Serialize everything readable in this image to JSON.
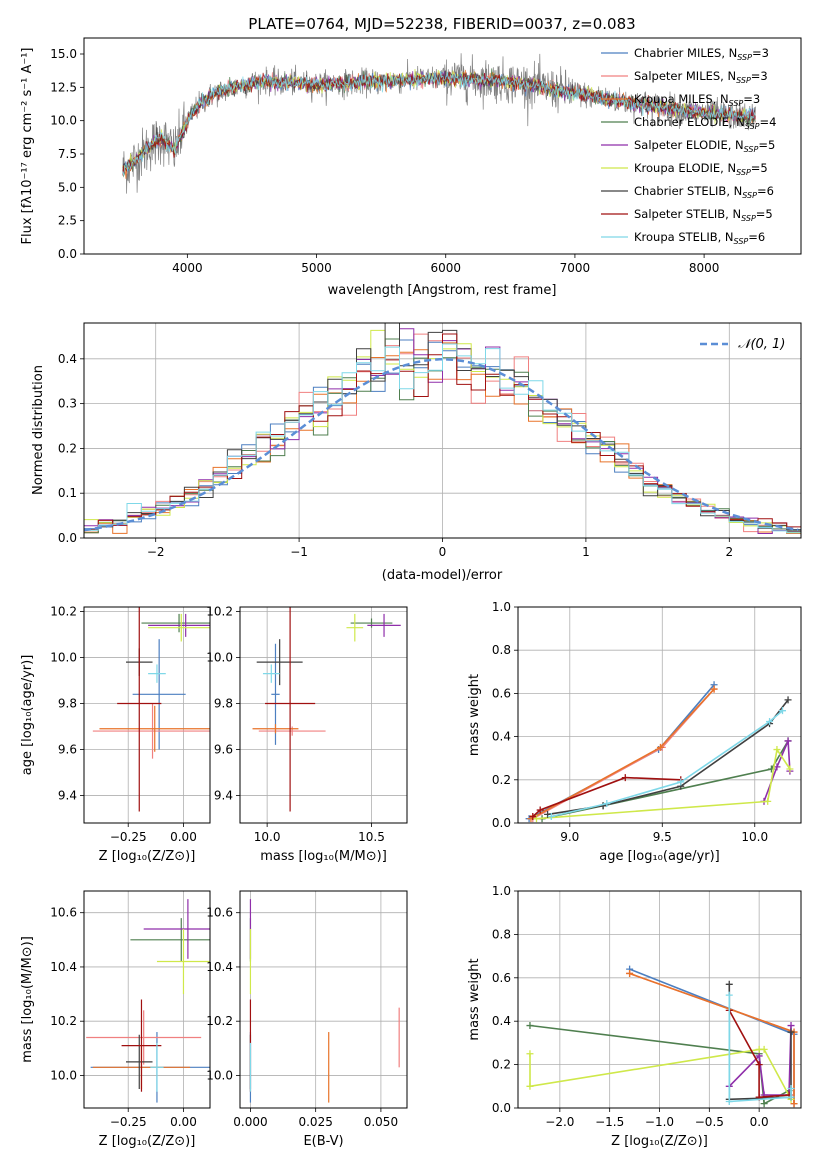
{
  "chart_data": [
    {
      "id": "spectrum",
      "type": "line",
      "title": "PLATE=0764, MJD=52238, FIBERID=0037, z=0.083",
      "xlabel": "wavelength [Angstrom, rest frame]",
      "ylabel": "Flux [fλ10⁻¹⁷ erg cm⁻² s⁻¹ A⁻¹]",
      "xlim": [
        3200,
        8750
      ],
      "ylim": [
        0,
        16.2
      ],
      "xticks": [
        4000,
        5000,
        6000,
        7000,
        8000
      ],
      "yticks": [
        0.0,
        2.5,
        5.0,
        7.5,
        10.0,
        12.5,
        15.0
      ],
      "grid": false,
      "legend_position": "right",
      "data_color": "#7f7f7f",
      "continuum": {
        "x": [
          3500,
          3600,
          3700,
          3800,
          3900,
          4000,
          4100,
          4200,
          4300,
          4400,
          4500,
          4600,
          4700,
          4800,
          4900,
          5000,
          5200,
          5400,
          5600,
          5800,
          6000,
          6200,
          6400,
          6600,
          6800,
          7000,
          7200,
          7400,
          7600,
          7800,
          8000,
          8200,
          8400
        ],
        "y": [
          6.3,
          7.0,
          8.0,
          8.7,
          7.7,
          10.0,
          11.3,
          12.0,
          12.3,
          12.6,
          12.8,
          13.0,
          12.8,
          12.9,
          12.8,
          12.7,
          12.8,
          12.9,
          13.0,
          13.1,
          13.2,
          13.1,
          13.0,
          12.8,
          12.4,
          12.1,
          11.7,
          11.4,
          11.1,
          10.8,
          10.6,
          10.4,
          10.3
        ]
      },
      "legend": [
        {
          "prefix": "Chabrier MILES, N",
          "nssp": "3",
          "color": "#4c7fc0"
        },
        {
          "prefix": "Salpeter MILES, N",
          "nssp": "3",
          "color": "#f08080"
        },
        {
          "prefix": "Kroupa MILES, N",
          "nssp": "3",
          "color": "#e8732a"
        },
        {
          "prefix": "Chabrier ELODIE, N",
          "nssp": "4",
          "color": "#4f7f4f"
        },
        {
          "prefix": "Salpeter ELODIE, N",
          "nssp": "5",
          "color": "#8f2faa"
        },
        {
          "prefix": "Kroupa ELODIE, N",
          "nssp": "5",
          "color": "#cfe84a"
        },
        {
          "prefix": "Chabrier STELIB, N",
          "nssp": "6",
          "color": "#404040"
        },
        {
          "prefix": "Salpeter STELIB, N",
          "nssp": "5",
          "color": "#a01010"
        },
        {
          "prefix": "Kroupa STELIB, N",
          "nssp": "6",
          "color": "#7fd8e8"
        }
      ],
      "ssp_subscript": "SSP"
    },
    {
      "id": "residuals",
      "type": "histogram",
      "xlabel": "(data-model)/error",
      "ylabel": "Normed distribution",
      "xlim": [
        -2.5,
        2.5
      ],
      "ylim": [
        0,
        0.48
      ],
      "xticks": [
        -2,
        -1,
        0,
        1,
        2
      ],
      "xtick_labels": [
        "−2",
        "−1",
        "0",
        "1",
        "2"
      ],
      "yticks": [
        0.0,
        0.1,
        0.2,
        0.3,
        0.4
      ],
      "grid": true,
      "legend_position": "top-right",
      "reference_curve": {
        "label": "𝒩(0, 1)",
        "color": "#5b8ed6",
        "style": "dashed",
        "mean": 0,
        "sigma": 1
      },
      "bin_width": 0.1
    },
    {
      "id": "age_vs_Z",
      "type": "errorbar",
      "xlabel": "Z [log₁₀(Z/Z⊙)]",
      "ylabel": "age  [log₁₀(age/yr)]",
      "xlim": [
        -0.45,
        0.12
      ],
      "ylim": [
        9.28,
        10.22
      ],
      "xticks": [
        -0.25,
        0.0
      ],
      "xtick_labels": [
        "−0.25",
        "0.00"
      ],
      "yticks": [
        9.4,
        9.6,
        9.8,
        10.0,
        10.2
      ],
      "grid": true,
      "points": [
        {
          "x": -0.11,
          "y": 9.84,
          "xerr": 0.12,
          "yerr": 0.24,
          "color": "#4c7fc0"
        },
        {
          "x": -0.14,
          "y": 9.68,
          "xerr": 0.27,
          "yerr": 0.12,
          "color": "#f08080"
        },
        {
          "x": -0.13,
          "y": 9.69,
          "xerr": 0.25,
          "yerr": 0.1,
          "color": "#e8732a"
        },
        {
          "x": -0.02,
          "y": 10.15,
          "xerr": 0.17,
          "yerr": 0.04,
          "color": "#4f7f4f"
        },
        {
          "x": 0.01,
          "y": 10.14,
          "xerr": 0.17,
          "yerr": 0.05,
          "color": "#8f2faa"
        },
        {
          "x": -0.01,
          "y": 10.13,
          "xerr": 0.15,
          "yerr": 0.06,
          "color": "#cfe84a"
        },
        {
          "x": -0.2,
          "y": 9.98,
          "xerr": 0.06,
          "yerr": 0.06,
          "color": "#404040"
        },
        {
          "x": -0.2,
          "y": 9.8,
          "xerr": 0.1,
          "yerr": 0.47,
          "color": "#a01010"
        },
        {
          "x": -0.12,
          "y": 9.93,
          "xerr": 0.04,
          "yerr": 0.04,
          "color": "#7fd8e8"
        }
      ]
    },
    {
      "id": "age_vs_mass",
      "type": "errorbar",
      "xlabel": "mass [log₁₀(M/M⊙)]",
      "ylabel": "",
      "xlim": [
        9.87,
        10.67
      ],
      "ylim": [
        9.28,
        10.22
      ],
      "xticks": [
        10.0,
        10.5
      ],
      "xtick_labels": [
        "10.0",
        "10.5"
      ],
      "yticks": [
        9.4,
        9.6,
        9.8,
        10.0,
        10.2
      ],
      "grid": true,
      "points": [
        {
          "x": 10.04,
          "y": 9.84,
          "xerr": 0.02,
          "yerr": 0.22,
          "color": "#4c7fc0"
        },
        {
          "x": 10.12,
          "y": 9.68,
          "xerr": 0.16,
          "yerr": 0.02,
          "color": "#f08080"
        },
        {
          "x": 10.04,
          "y": 9.69,
          "xerr": 0.11,
          "yerr": 0.02,
          "color": "#e8732a"
        },
        {
          "x": 10.5,
          "y": 10.15,
          "xerr": 0.1,
          "yerr": 0.02,
          "color": "#4f7f4f"
        },
        {
          "x": 10.56,
          "y": 10.14,
          "xerr": 0.08,
          "yerr": 0.05,
          "color": "#8f2faa"
        },
        {
          "x": 10.42,
          "y": 10.13,
          "xerr": 0.04,
          "yerr": 0.06,
          "color": "#cfe84a"
        },
        {
          "x": 10.06,
          "y": 9.98,
          "xerr": 0.11,
          "yerr": 0.1,
          "color": "#404040"
        },
        {
          "x": 10.11,
          "y": 9.8,
          "xerr": 0.12,
          "yerr": 0.47,
          "color": "#a01010"
        },
        {
          "x": 10.02,
          "y": 9.93,
          "xerr": 0.04,
          "yerr": 0.04,
          "color": "#7fd8e8"
        }
      ]
    },
    {
      "id": "weight_vs_age",
      "type": "line",
      "xlabel": "age  [log₁₀(age/yr)]",
      "ylabel": "mass weight",
      "xlim": [
        8.72,
        10.25
      ],
      "ylim": [
        0,
        1.0
      ],
      "xticks": [
        9.0,
        9.5,
        10.0
      ],
      "xtick_labels": [
        "9.0",
        "9.5",
        "10.0"
      ],
      "yticks": [
        0.0,
        0.2,
        0.4,
        0.6,
        0.8,
        1.0
      ],
      "grid": true,
      "series": [
        {
          "color": "#4c7fc0",
          "x": [
            8.78,
            9.48,
            9.78
          ],
          "y": [
            0.02,
            0.34,
            0.64
          ]
        },
        {
          "color": "#f08080",
          "x": [
            8.8,
            9.5,
            9.78
          ],
          "y": [
            0.02,
            0.35,
            0.62
          ]
        },
        {
          "color": "#e8732a",
          "x": [
            8.79,
            9.49,
            9.78
          ],
          "y": [
            0.02,
            0.35,
            0.62
          ]
        },
        {
          "color": "#4f7f4f",
          "x": [
            8.85,
            9.18,
            10.09,
            10.18
          ],
          "y": [
            0.02,
            0.08,
            0.25,
            0.38
          ]
        },
        {
          "color": "#8f2faa",
          "x": [
            10.05,
            10.12,
            10.18,
            10.19
          ],
          "y": [
            0.1,
            0.26,
            0.38,
            0.24
          ]
        },
        {
          "color": "#cfe84a",
          "x": [
            8.82,
            10.07,
            10.12,
            10.19
          ],
          "y": [
            0.02,
            0.1,
            0.34,
            0.25
          ]
        },
        {
          "color": "#404040",
          "x": [
            8.88,
            9.18,
            9.6,
            10.08,
            10.18
          ],
          "y": [
            0.04,
            0.08,
            0.17,
            0.46,
            0.57
          ]
        },
        {
          "color": "#a01010",
          "x": [
            8.8,
            8.84,
            9.3,
            9.6
          ],
          "y": [
            0.03,
            0.06,
            0.21,
            0.2
          ]
        },
        {
          "color": "#7fd8e8",
          "x": [
            8.9,
            9.2,
            9.6,
            10.08,
            10.15
          ],
          "y": [
            0.03,
            0.09,
            0.19,
            0.47,
            0.52
          ]
        }
      ]
    },
    {
      "id": "mass_vs_Z",
      "type": "errorbar",
      "xlabel": "Z [log₁₀(Z/Z⊙)]",
      "ylabel": "mass [log₁₀(M/M⊙)]",
      "xlim": [
        -0.45,
        0.12
      ],
      "ylim": [
        9.88,
        10.68
      ],
      "xticks": [
        -0.25,
        0.0
      ],
      "xtick_labels": [
        "−0.25",
        "0.00"
      ],
      "yticks": [
        10.0,
        10.2,
        10.4,
        10.6
      ],
      "grid": true,
      "points": [
        {
          "x": -0.12,
          "y": 10.03,
          "xerr": 0.3,
          "yerr": 0.13,
          "color": "#4c7fc0"
        },
        {
          "x": -0.18,
          "y": 10.14,
          "xerr": 0.26,
          "yerr": 0.1,
          "color": "#f08080"
        },
        {
          "x": -0.19,
          "y": 10.03,
          "xerr": 0.22,
          "yerr": 0.08,
          "color": "#e8732a"
        },
        {
          "x": -0.01,
          "y": 10.5,
          "xerr": 0.23,
          "yerr": 0.08,
          "color": "#4f7f4f"
        },
        {
          "x": 0.02,
          "y": 10.54,
          "xerr": 0.2,
          "yerr": 0.11,
          "color": "#8f2faa"
        },
        {
          "x": 0.0,
          "y": 10.42,
          "xerr": 0.12,
          "yerr": 0.12,
          "color": "#cfe84a"
        },
        {
          "x": -0.2,
          "y": 10.05,
          "xerr": 0.06,
          "yerr": 0.1,
          "color": "#404040"
        },
        {
          "x": -0.19,
          "y": 10.11,
          "xerr": 0.09,
          "yerr": 0.17,
          "color": "#a01010"
        },
        {
          "x": -0.12,
          "y": 10.03,
          "xerr": 0.03,
          "yerr": 0.09,
          "color": "#7fd8e8"
        }
      ]
    },
    {
      "id": "mass_vs_ebv",
      "type": "errorbar",
      "xlabel": "E(B-V)",
      "ylabel": "",
      "xlim": [
        -0.004,
        0.06
      ],
      "ylim": [
        9.88,
        10.68
      ],
      "xticks": [
        0.0,
        0.025,
        0.05
      ],
      "xtick_labels": [
        "0.000",
        "0.025",
        "0.050"
      ],
      "yticks": [
        10.0,
        10.2,
        10.4,
        10.6
      ],
      "grid": true,
      "points": [
        {
          "x": 0.0,
          "y": 10.03,
          "xerr": 0,
          "yerr": 0.13,
          "color": "#4c7fc0"
        },
        {
          "x": 0.057,
          "y": 10.14,
          "xerr": 0,
          "yerr": 0.11,
          "color": "#f08080"
        },
        {
          "x": 0.03,
          "y": 10.03,
          "xerr": 0,
          "yerr": 0.13,
          "color": "#e8732a"
        },
        {
          "x": 0.0,
          "y": 10.5,
          "xerr": 0,
          "yerr": 0.08,
          "color": "#4f7f4f"
        },
        {
          "x": 0.0,
          "y": 10.54,
          "xerr": 0,
          "yerr": 0.11,
          "color": "#8f2faa"
        },
        {
          "x": 0.0,
          "y": 10.42,
          "xerr": 0,
          "yerr": 0.12,
          "color": "#cfe84a"
        },
        {
          "x": 0.0,
          "y": 10.05,
          "xerr": 0,
          "yerr": 0.1,
          "color": "#404040"
        },
        {
          "x": 0.0,
          "y": 10.11,
          "xerr": 0,
          "yerr": 0.17,
          "color": "#a01010"
        },
        {
          "x": 0.0,
          "y": 10.03,
          "xerr": 0,
          "yerr": 0.09,
          "color": "#7fd8e8"
        }
      ]
    },
    {
      "id": "weight_vs_Z",
      "type": "line",
      "xlabel": "Z [log₁₀(Z/Z⊙)]",
      "ylabel": "mass weight",
      "xlim": [
        -2.42,
        0.42
      ],
      "ylim": [
        0,
        1.0
      ],
      "xticks": [
        -2.0,
        -1.5,
        -1.0,
        -0.5,
        0.0
      ],
      "xtick_labels": [
        "−2.0",
        "−1.5",
        "−1.0",
        "−0.5",
        "0.0"
      ],
      "yticks": [
        0.0,
        0.2,
        0.4,
        0.6,
        0.8,
        1.0
      ],
      "grid": true,
      "series": [
        {
          "color": "#4c7fc0",
          "x": [
            -1.3,
            0.35,
            0.35
          ],
          "y": [
            0.64,
            0.34,
            0.02
          ]
        },
        {
          "color": "#f08080",
          "x": [
            -1.3,
            0.35,
            0.35
          ],
          "y": [
            0.62,
            0.35,
            0.02
          ]
        },
        {
          "color": "#e8732a",
          "x": [
            -1.3,
            0.35,
            0.35
          ],
          "y": [
            0.62,
            0.35,
            0.02
          ]
        },
        {
          "color": "#4f7f4f",
          "x": [
            -2.3,
            0.0,
            0.05,
            0.3
          ],
          "y": [
            0.38,
            0.25,
            0.02,
            0.08
          ]
        },
        {
          "color": "#8f2faa",
          "x": [
            -0.3,
            0.0,
            0.05,
            0.3,
            0.32
          ],
          "y": [
            0.1,
            0.24,
            0.06,
            0.06,
            0.38
          ]
        },
        {
          "color": "#cfe84a",
          "x": [
            -2.3,
            -2.3,
            0.0,
            0.05,
            0.32
          ],
          "y": [
            0.25,
            0.1,
            0.27,
            0.27,
            0.04
          ]
        },
        {
          "color": "#404040",
          "x": [
            -0.3,
            -0.3,
            0.32,
            0.32
          ],
          "y": [
            0.57,
            0.04,
            0.05,
            0.35
          ]
        },
        {
          "color": "#a01010",
          "x": [
            -0.3,
            0.0,
            0.0,
            0.3
          ],
          "y": [
            0.45,
            0.2,
            0.05,
            0.06
          ]
        },
        {
          "color": "#7fd8e8",
          "x": [
            -0.3,
            -0.3,
            0.32,
            0.32
          ],
          "y": [
            0.52,
            0.03,
            0.05,
            0.09
          ]
        }
      ]
    }
  ]
}
